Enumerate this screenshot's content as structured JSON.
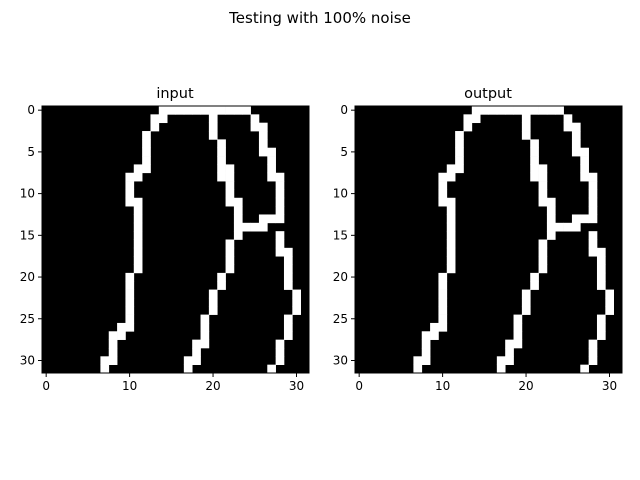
{
  "figure": {
    "title": "Testing with 100% noise"
  },
  "chart_data": [
    {
      "type": "heatmap",
      "title": "input",
      "xlabel": "",
      "ylabel": "",
      "xticks": [
        "0",
        "10",
        "20",
        "30"
      ],
      "yticks": [
        "0",
        "5",
        "10",
        "15",
        "20",
        "25",
        "30"
      ],
      "xlim": [
        -0.5,
        31.5
      ],
      "ylim": [
        31.5,
        -0.5
      ],
      "colormap": [
        "#000000",
        "#ffffff"
      ],
      "grid_rows": [
        "00000000000000111111111110000000",
        "00000000000001100000100001000000",
        "00000000000001000000100001100000",
        "00000000000010000000100000100000",
        "00000000000010000000010000100000",
        "00000000000010000000010000110000",
        "00000000000010000000010000010000",
        "00000000000110000000011000010000",
        "00000000001100000000011000011000",
        "00000000001000000000001000001000",
        "00000000001000000000001000001000",
        "00000000001100000000001100001000",
        "00000000000100000000000100001000",
        "00000000000100000000000100111000",
        "00000000000100000000000111100000",
        "00000000000100000000000100001000",
        "00000000000100000000001000001000",
        "00000000000100000000001000001100",
        "00000000000100000000001000000100",
        "00000000000100000000001000000100",
        "00000000001000000000010000000100",
        "00000000001000000000010000000100",
        "00000000001000000000100000000010",
        "00000000001000000000100000000010",
        "00000000001000000000100000000010",
        "00000000001000000001000000000100",
        "00000000011000000001000000000100",
        "00000000110000000001000000000100",
        "00000000100000000011000000001000",
        "00000000100000000010000000001000",
        "00000001100000000110000000001000",
        "00000001000000000100000000010000"
      ]
    },
    {
      "type": "heatmap",
      "title": "output",
      "xlabel": "",
      "ylabel": "",
      "xticks": [
        "0",
        "10",
        "20",
        "30"
      ],
      "yticks": [
        "0",
        "5",
        "10",
        "15",
        "20",
        "25",
        "30"
      ],
      "xlim": [
        -0.5,
        31.5
      ],
      "ylim": [
        31.5,
        -0.5
      ],
      "colormap": [
        "#000000",
        "#ffffff"
      ],
      "grid_rows": [
        "00000000000000111111111110000000",
        "00000000000001100000100001000000",
        "00000000000001000000100001100000",
        "00000000000010000000100000100000",
        "00000000000010000000010000100000",
        "00000000000010000000010000110000",
        "00000000000010000000010000010000",
        "00000000000110000000011000010000",
        "00000000001100000000011000011000",
        "00000000001000000000001000001000",
        "00000000001000000000001000001000",
        "00000000001100000000001100001000",
        "00000000000100000000000100001000",
        "00000000000100000000000100111000",
        "00000000000100000000000111100000",
        "00000000000100000000000100001000",
        "00000000000100000000001000001000",
        "00000000000100000000001000001100",
        "00000000000100000000001000000100",
        "00000000000100000000001000000100",
        "00000000001000000000010000000100",
        "00000000001000000000010000000100",
        "00000000001000000000100000000010",
        "00000000001000000000100000000010",
        "00000000001000000000100000000010",
        "00000000001000000001000000000100",
        "00000000011000000001000000000100",
        "00000000110000000001000000000100",
        "00000000100000000011000000001000",
        "00000000100000000010000000001000",
        "00000001100000000110000000001000",
        "00000001000000000100000000010000"
      ]
    }
  ]
}
